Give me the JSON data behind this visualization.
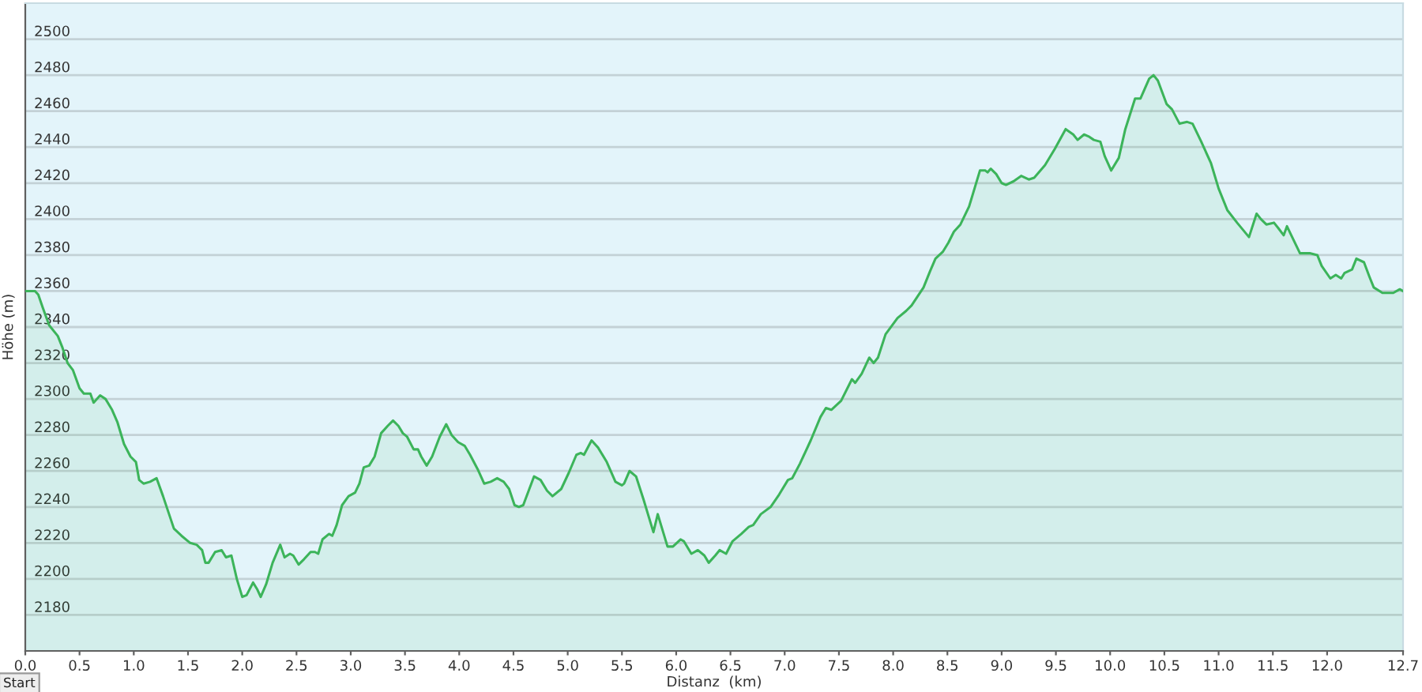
{
  "chart_data": {
    "type": "area",
    "xlabel": "Distanz  (km)",
    "ylabel": "Höhe (m)",
    "annotations": [
      "Start"
    ],
    "color": "#3cb45a",
    "grid": "y",
    "xlim": [
      0,
      12.7
    ],
    "ylim": [
      2160,
      2520
    ],
    "xticks": [
      {
        "value": 0,
        "label": "0.0"
      },
      {
        "value": 0.5,
        "label": "0.5"
      },
      {
        "value": 1,
        "label": "1.0"
      },
      {
        "value": 1.5,
        "label": "1.5"
      },
      {
        "value": 2,
        "label": "2.0"
      },
      {
        "value": 2.5,
        "label": "2.5"
      },
      {
        "value": 3,
        "label": "3.0"
      },
      {
        "value": 3.5,
        "label": "3.5"
      },
      {
        "value": 4,
        "label": "4.0"
      },
      {
        "value": 4.5,
        "label": "4.5"
      },
      {
        "value": 5,
        "label": "5.0"
      },
      {
        "value": 5.5,
        "label": "5.5"
      },
      {
        "value": 6,
        "label": "6.0"
      },
      {
        "value": 6.5,
        "label": "6.5"
      },
      {
        "value": 7,
        "label": "7.0"
      },
      {
        "value": 7.5,
        "label": "7.5"
      },
      {
        "value": 8,
        "label": "8.0"
      },
      {
        "value": 8.5,
        "label": "8.5"
      },
      {
        "value": 9,
        "label": "9.0"
      },
      {
        "value": 9.5,
        "label": "9.5"
      },
      {
        "value": 10,
        "label": "10.0"
      },
      {
        "value": 10.5,
        "label": "10.5"
      },
      {
        "value": 11,
        "label": "11.0"
      },
      {
        "value": 11.5,
        "label": "11.5"
      },
      {
        "value": 12,
        "label": "12.0"
      },
      {
        "value": 12.7,
        "label": "12.7"
      }
    ],
    "yticks": [
      2180,
      2200,
      2220,
      2240,
      2260,
      2280,
      2300,
      2320,
      2340,
      2360,
      2380,
      2400,
      2420,
      2440,
      2460,
      2480,
      2500
    ],
    "x": [
      0.0,
      0.09,
      0.12,
      0.16,
      0.22,
      0.3,
      0.34,
      0.39,
      0.44,
      0.5,
      0.54,
      0.6,
      0.63,
      0.69,
      0.74,
      0.8,
      0.85,
      0.91,
      0.97,
      1.02,
      1.05,
      1.09,
      1.15,
      1.21,
      1.27,
      1.32,
      1.37,
      1.44,
      1.52,
      1.58,
      1.63,
      1.66,
      1.69,
      1.75,
      1.81,
      1.85,
      1.9,
      1.95,
      2.0,
      2.04,
      2.1,
      2.14,
      2.17,
      2.22,
      2.28,
      2.35,
      2.39,
      2.44,
      2.47,
      2.52,
      2.57,
      2.63,
      2.67,
      2.7,
      2.74,
      2.8,
      2.83,
      2.87,
      2.92,
      2.98,
      3.04,
      3.08,
      3.12,
      3.17,
      3.22,
      3.28,
      3.34,
      3.39,
      3.44,
      3.48,
      3.52,
      3.58,
      3.62,
      3.65,
      3.7,
      3.75,
      3.82,
      3.88,
      3.93,
      3.99,
      4.05,
      4.1,
      4.17,
      4.23,
      4.29,
      4.35,
      4.41,
      4.46,
      4.51,
      4.55,
      4.59,
      4.64,
      4.69,
      4.75,
      4.81,
      4.86,
      4.94,
      5.01,
      5.08,
      5.12,
      5.15,
      5.22,
      5.28,
      5.36,
      5.44,
      5.5,
      5.52,
      5.57,
      5.63,
      5.7,
      5.79,
      5.83,
      5.87,
      5.92,
      5.97,
      6.04,
      6.07,
      6.14,
      6.2,
      6.26,
      6.3,
      6.36,
      6.4,
      6.46,
      6.52,
      6.6,
      6.67,
      6.71,
      6.78,
      6.87,
      6.95,
      7.03,
      7.07,
      7.14,
      7.24,
      7.33,
      7.38,
      7.43,
      7.52,
      7.62,
      7.65,
      7.71,
      7.78,
      7.82,
      7.86,
      7.93,
      8.04,
      8.12,
      8.17,
      8.28,
      8.34,
      8.39,
      8.46,
      8.51,
      8.56,
      8.62,
      8.7,
      8.75,
      8.8,
      8.85,
      8.87,
      8.9,
      8.95,
      9.0,
      9.04,
      9.11,
      9.18,
      9.25,
      9.3,
      9.4,
      9.49,
      9.59,
      9.66,
      9.7,
      9.76,
      9.8,
      9.85,
      9.91,
      9.95,
      10.01,
      10.08,
      10.14,
      10.23,
      10.28,
      10.36,
      10.4,
      10.44,
      10.52,
      10.57,
      10.64,
      10.71,
      10.76,
      10.84,
      10.93,
      11.0,
      11.08,
      11.17,
      11.28,
      11.35,
      11.39,
      11.44,
      11.51,
      11.55,
      11.6,
      11.63,
      11.67,
      11.75,
      11.84,
      11.91,
      11.95,
      12.03,
      12.08,
      12.13,
      12.16,
      12.23,
      12.27,
      12.34,
      12.39,
      12.43,
      12.51,
      12.61,
      12.67,
      12.7
    ],
    "values": [
      2360,
      2360,
      2358,
      2351,
      2341,
      2335,
      2329,
      2320,
      2316,
      2306,
      2303,
      2303,
      2298,
      2302,
      2300,
      2294,
      2287,
      2275,
      2268,
      2265,
      2255,
      2253,
      2254,
      2256,
      2246,
      2237,
      2228,
      2224,
      2220,
      2219,
      2216,
      2209,
      2209,
      2215,
      2216,
      2212,
      2213,
      2200,
      2190,
      2191,
      2198,
      2194,
      2190,
      2197,
      2209,
      2219,
      2212,
      2214,
      2213,
      2208,
      2211,
      2215,
      2215,
      2214,
      2222,
      2225,
      2224,
      2230,
      2241,
      2246,
      2248,
      2253,
      2262,
      2263,
      2268,
      2281,
      2285,
      2288,
      2285,
      2281,
      2279,
      2272,
      2272,
      2268,
      2263,
      2268,
      2279,
      2286,
      2280,
      2276,
      2274,
      2269,
      2261,
      2253,
      2254,
      2256,
      2254,
      2250,
      2241,
      2240,
      2241,
      2249,
      2257,
      2255,
      2249,
      2246,
      2250,
      2259,
      2269,
      2270,
      2269,
      2277,
      2273,
      2265,
      2254,
      2252,
      2253,
      2260,
      2257,
      2244,
      2226,
      2236,
      2228,
      2218,
      2218,
      2222,
      2221,
      2214,
      2216,
      2213,
      2209,
      2213,
      2216,
      2214,
      2221,
      2225,
      2229,
      2230,
      2236,
      2240,
      2247,
      2255,
      2256,
      2264,
      2277,
      2290,
      2295,
      2294,
      2299,
      2311,
      2309,
      2314,
      2323,
      2320,
      2323,
      2336,
      2345,
      2349,
      2352,
      2362,
      2371,
      2378,
      2382,
      2387,
      2393,
      2397,
      2407,
      2417,
      2427,
      2427,
      2426,
      2428,
      2425,
      2420,
      2419,
      2421,
      2424,
      2422,
      2423,
      2430,
      2439,
      2450,
      2447,
      2444,
      2447,
      2446,
      2444,
      2443,
      2435,
      2427,
      2434,
      2450,
      2467,
      2467,
      2478,
      2480,
      2477,
      2464,
      2461,
      2453,
      2454,
      2453,
      2443,
      2431,
      2417,
      2405,
      2398,
      2390,
      2403,
      2400,
      2397,
      2398,
      2395,
      2391,
      2396,
      2391,
      2381,
      2381,
      2380,
      2374,
      2367,
      2369,
      2367,
      2370,
      2372,
      2378,
      2376,
      2368,
      2362,
      2359,
      2359,
      2361,
      2360
    ]
  }
}
